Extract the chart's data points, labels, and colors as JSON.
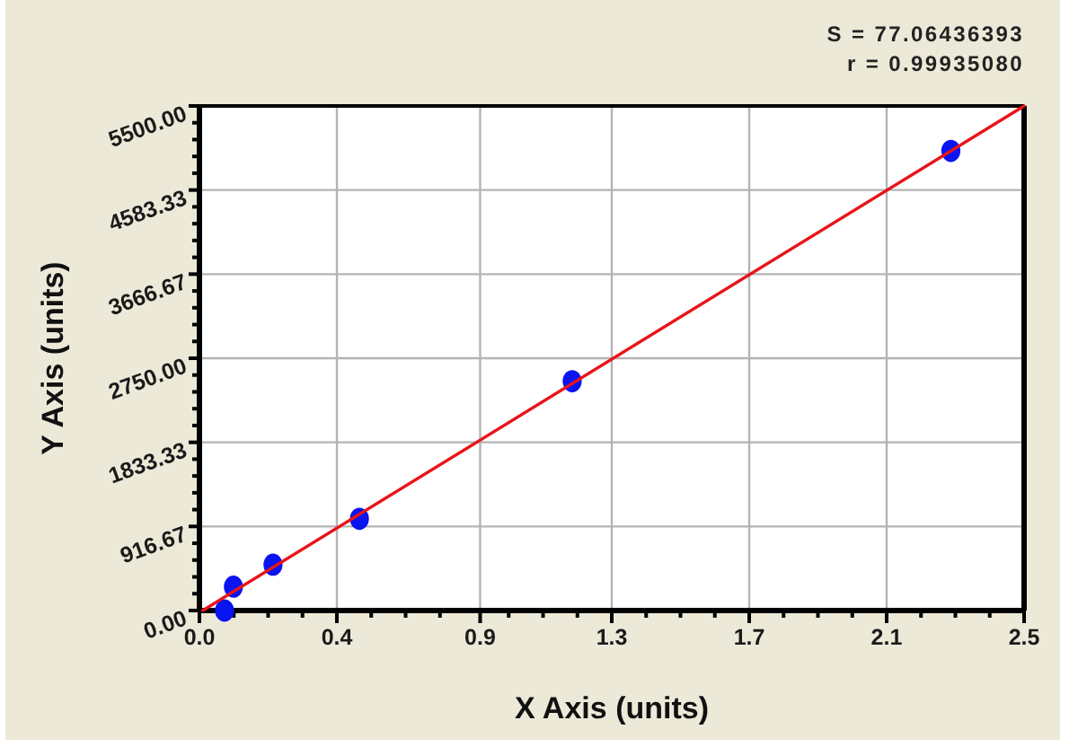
{
  "chart_data": {
    "type": "scatter",
    "xlabel": "X Axis (units)",
    "ylabel": "Y Axis (units)",
    "annotations": [
      "S = 77.06436393",
      "r = 0.99935080"
    ],
    "xlim": [
      0,
      2.5
    ],
    "ylim": [
      0,
      5500
    ],
    "xticks": [
      {
        "value": 0,
        "label": "0.0"
      },
      {
        "value": 0.1042,
        "label": null
      },
      {
        "value": 0.2083,
        "label": null
      },
      {
        "value": 0.3125,
        "label": null
      },
      {
        "value": 0.4167,
        "label": "0.4"
      },
      {
        "value": 0.5208,
        "label": null
      },
      {
        "value": 0.625,
        "label": null
      },
      {
        "value": 0.7292,
        "label": null
      },
      {
        "value": 0.851,
        "label": "0.9"
      },
      {
        "value": 0.9375,
        "label": null
      },
      {
        "value": 1.0417,
        "label": null
      },
      {
        "value": 1.1458,
        "label": null
      },
      {
        "value": 1.25,
        "label": "1.3"
      },
      {
        "value": 1.3542,
        "label": null
      },
      {
        "value": 1.4583,
        "label": null
      },
      {
        "value": 1.5625,
        "label": null
      },
      {
        "value": 1.6667,
        "label": "1.7"
      },
      {
        "value": 1.7708,
        "label": null
      },
      {
        "value": 1.875,
        "label": null
      },
      {
        "value": 1.9792,
        "label": null
      },
      {
        "value": 2.0833,
        "label": "2.1"
      },
      {
        "value": 2.1875,
        "label": null
      },
      {
        "value": 2.2917,
        "label": null
      },
      {
        "value": 2.3958,
        "label": null
      },
      2.5
    ],
    "yticks": [
      {
        "value": 0,
        "label": "0.00"
      },
      {
        "value": 183.33,
        "label": null
      },
      {
        "value": 366.67,
        "label": null
      },
      {
        "value": 550,
        "label": null
      },
      {
        "value": 733.33,
        "label": null
      },
      916.67,
      {
        "value": 1100,
        "label": null
      },
      {
        "value": 1283.33,
        "label": null
      },
      {
        "value": 1466.67,
        "label": null
      },
      {
        "value": 1650,
        "label": null
      },
      1833.33,
      {
        "value": 2016.67,
        "label": null
      },
      {
        "value": 2200,
        "label": null
      },
      {
        "value": 2383.33,
        "label": null
      },
      {
        "value": 2566.67,
        "label": null
      },
      {
        "value": 2750,
        "label": "2750.00"
      },
      {
        "value": 2933.33,
        "label": null
      },
      {
        "value": 3116.67,
        "label": null
      },
      {
        "value": 3300,
        "label": null
      },
      {
        "value": 3483.33,
        "label": null
      },
      3666.67,
      {
        "value": 3850,
        "label": null
      },
      {
        "value": 4033.33,
        "label": null
      },
      {
        "value": 4216.67,
        "label": null
      },
      {
        "value": 4400,
        "label": null
      },
      4583.33,
      {
        "value": 4766.67,
        "label": null
      },
      {
        "value": 4950,
        "label": null
      },
      {
        "value": 5133.33,
        "label": null
      },
      {
        "value": 5316.67,
        "label": null
      },
      {
        "value": 5500,
        "label": "5500.00"
      }
    ],
    "grid": true,
    "marker": "circle",
    "series": [
      {
        "color": "#0a14f0",
        "x": [
          0.076,
          0.103,
          0.223,
          0.485,
          1.13,
          2.278
        ],
        "values": [
          0,
          260,
          500,
          1000,
          2500,
          5010
        ]
      },
      {
        "type": "line",
        "color": "#e8141a",
        "x": [
          0.01,
          2.5
        ],
        "values": [
          0,
          5500
        ],
        "marker": "none",
        "line_style": "solid"
      }
    ]
  }
}
